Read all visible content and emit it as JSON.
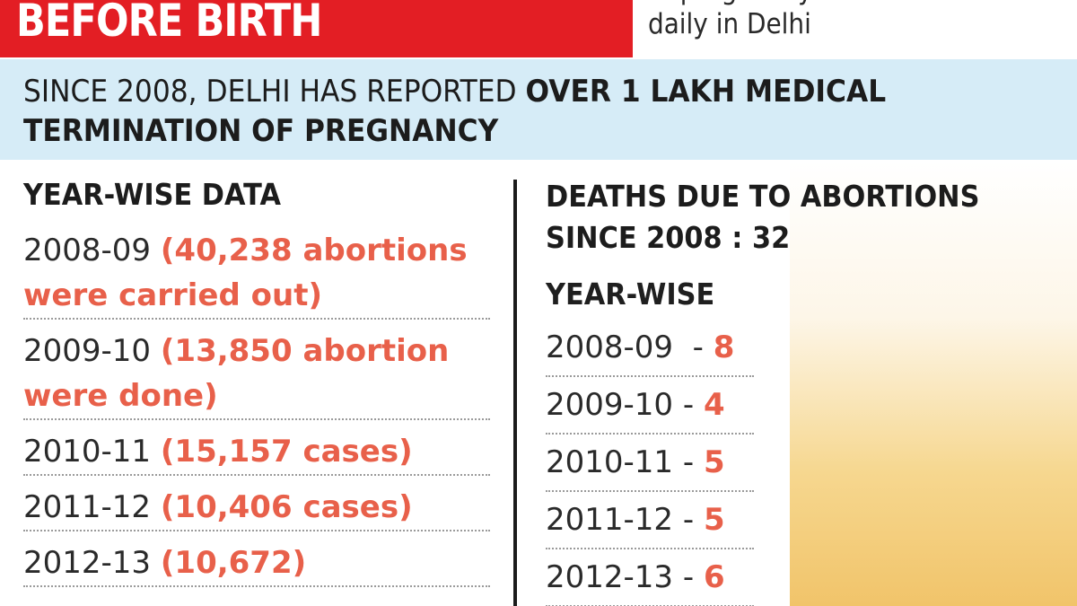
{
  "header": {
    "title": "BEFORE BIRTH",
    "note_line1_partial": "of pregnancy are carried out",
    "note_line2": "daily in Delhi"
  },
  "headline": {
    "plain": "SINCE 2008, DELHI HAS REPORTED ",
    "bold": "OVER 1 LAKH MEDICAL TERMINATION OF PREGNANCY"
  },
  "year_wise_data": {
    "title": "YEAR-WISE DATA",
    "entries": [
      {
        "year": "2008-09",
        "value": "(40,238 abortions were carried out)"
      },
      {
        "year": "2009-10",
        "value": "(13,850 abortion were done)"
      },
      {
        "year": "2010-11",
        "value": "(15,157 cases)"
      },
      {
        "year": "2011-12",
        "value": "(10,406 cases)"
      },
      {
        "year": "2012-13",
        "value": "(10,672)"
      }
    ]
  },
  "deaths": {
    "title_line1": "DEATHS DUE TO ABORTIONS",
    "title_line2": "SINCE 2008 : 32",
    "subtitle": "YEAR-WISE",
    "rows": [
      {
        "year": "2008-09",
        "sep": "  - ",
        "count": "8"
      },
      {
        "year": "2009-10",
        "sep": " - ",
        "count": "4"
      },
      {
        "year": "2010-11",
        "sep": " - ",
        "count": "5"
      },
      {
        "year": "2011-12",
        "sep": " - ",
        "count": "5"
      },
      {
        "year": "2012-13",
        "sep": " - ",
        "count": "6"
      }
    ]
  },
  "colors": {
    "banner_red": "#e31e24",
    "band_blue": "#d6ecf7",
    "value_orange": "#e8604a"
  }
}
